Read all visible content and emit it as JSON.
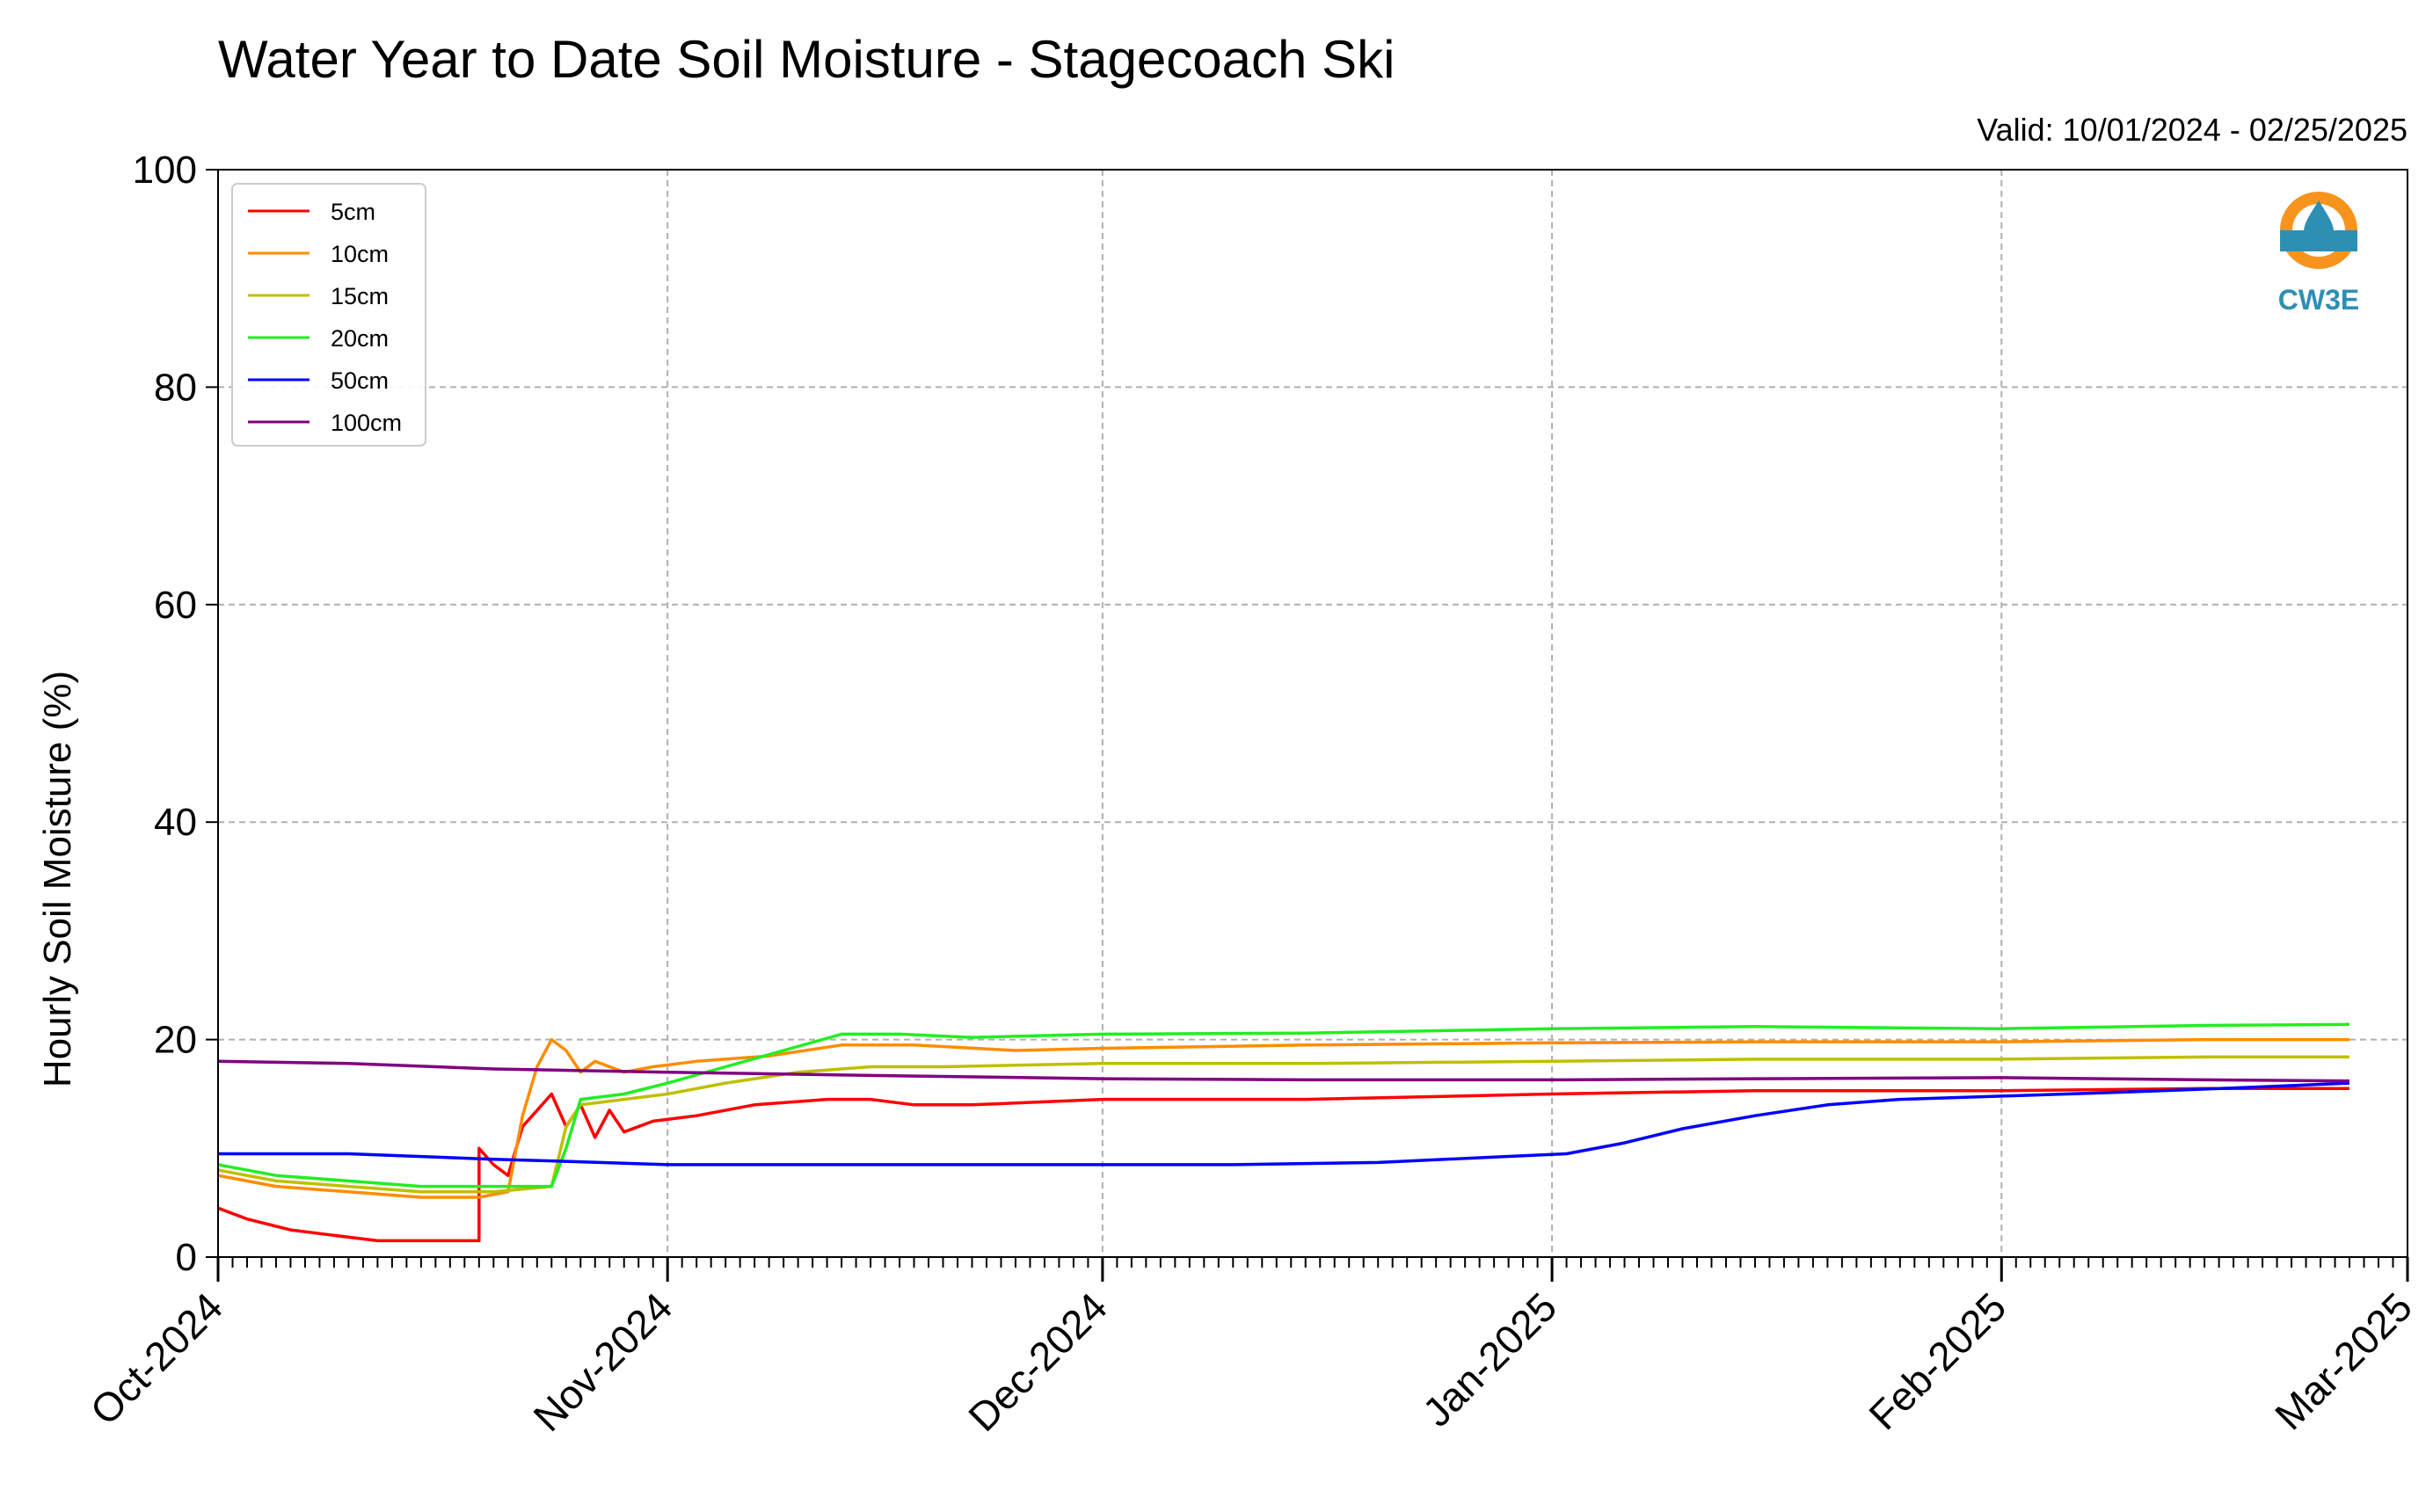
{
  "chart_data": {
    "type": "line",
    "title": "Water Year to Date Soil Moisture - Stagecoach Ski",
    "subtitle": "Valid: 10/01/2024 - 02/25/2025",
    "xlabel": "",
    "ylabel": "Hourly Soil Moisture (%)",
    "ylim": [
      0,
      100
    ],
    "xlim": [
      "2024-10-01",
      "2025-03-01"
    ],
    "yticks": [
      "0",
      "20",
      "40",
      "60",
      "80",
      "100"
    ],
    "xticks": [
      "Oct-2024",
      "Nov-2024",
      "Dec-2024",
      "Jan-2025",
      "Feb-2025",
      "Mar-2025"
    ],
    "grid": true,
    "legend_position": "top-left",
    "logo_text": "CW3E",
    "series": [
      {
        "name": "5cm",
        "color": "#ff0000",
        "points": [
          [
            "2024-10-01",
            4.5
          ],
          [
            "2024-10-03",
            3.5
          ],
          [
            "2024-10-06",
            2.5
          ],
          [
            "2024-10-09",
            2.0
          ],
          [
            "2024-10-12",
            1.5
          ],
          [
            "2024-10-15",
            1.5
          ],
          [
            "2024-10-17",
            1.5
          ],
          [
            "2024-10-19",
            1.5
          ],
          [
            "2024-10-19",
            10.0
          ],
          [
            "2024-10-20",
            8.5
          ],
          [
            "2024-10-21",
            7.5
          ],
          [
            "2024-10-22",
            12.0
          ],
          [
            "2024-10-24",
            15.0
          ],
          [
            "2024-10-25",
            12.0
          ],
          [
            "2024-10-26",
            14.0
          ],
          [
            "2024-10-27",
            11.0
          ],
          [
            "2024-10-28",
            13.5
          ],
          [
            "2024-10-29",
            11.5
          ],
          [
            "2024-10-31",
            12.5
          ],
          [
            "2024-11-03",
            13.0
          ],
          [
            "2024-11-07",
            14.0
          ],
          [
            "2024-11-12",
            14.5
          ],
          [
            "2024-11-15",
            14.5
          ],
          [
            "2024-11-18",
            14.0
          ],
          [
            "2024-11-22",
            14.0
          ],
          [
            "2024-12-01",
            14.5
          ],
          [
            "2024-12-15",
            14.5
          ],
          [
            "2025-01-01",
            15.0
          ],
          [
            "2025-01-15",
            15.3
          ],
          [
            "2025-02-01",
            15.3
          ],
          [
            "2025-02-15",
            15.5
          ],
          [
            "2025-02-25",
            15.5
          ]
        ]
      },
      {
        "name": "10cm",
        "color": "#ff8c00",
        "points": [
          [
            "2024-10-01",
            7.5
          ],
          [
            "2024-10-05",
            6.5
          ],
          [
            "2024-10-10",
            6.0
          ],
          [
            "2024-10-15",
            5.5
          ],
          [
            "2024-10-19",
            5.5
          ],
          [
            "2024-10-21",
            6.0
          ],
          [
            "2024-10-22",
            13.0
          ],
          [
            "2024-10-23",
            17.5
          ],
          [
            "2024-10-24",
            20.0
          ],
          [
            "2024-10-25",
            19.0
          ],
          [
            "2024-10-26",
            17.0
          ],
          [
            "2024-10-27",
            18.0
          ],
          [
            "2024-10-29",
            17.0
          ],
          [
            "2024-10-31",
            17.5
          ],
          [
            "2024-11-03",
            18.0
          ],
          [
            "2024-11-08",
            18.5
          ],
          [
            "2024-11-13",
            19.5
          ],
          [
            "2024-11-18",
            19.5
          ],
          [
            "2024-11-25",
            19.0
          ],
          [
            "2024-12-01",
            19.2
          ],
          [
            "2024-12-15",
            19.5
          ],
          [
            "2025-01-01",
            19.7
          ],
          [
            "2025-01-15",
            19.8
          ],
          [
            "2025-02-01",
            19.8
          ],
          [
            "2025-02-15",
            20.0
          ],
          [
            "2025-02-25",
            20.0
          ]
        ]
      },
      {
        "name": "15cm",
        "color": "#bfbf00",
        "points": [
          [
            "2024-10-01",
            8.0
          ],
          [
            "2024-10-05",
            7.0
          ],
          [
            "2024-10-10",
            6.5
          ],
          [
            "2024-10-15",
            6.0
          ],
          [
            "2024-10-20",
            6.0
          ],
          [
            "2024-10-24",
            6.5
          ],
          [
            "2024-10-25",
            12.0
          ],
          [
            "2024-10-26",
            14.0
          ],
          [
            "2024-10-29",
            14.5
          ],
          [
            "2024-11-01",
            15.0
          ],
          [
            "2024-11-05",
            16.0
          ],
          [
            "2024-11-10",
            17.0
          ],
          [
            "2024-11-15",
            17.5
          ],
          [
            "2024-11-20",
            17.5
          ],
          [
            "2024-12-01",
            17.8
          ],
          [
            "2024-12-15",
            17.8
          ],
          [
            "2025-01-01",
            18.0
          ],
          [
            "2025-01-15",
            18.2
          ],
          [
            "2025-02-01",
            18.2
          ],
          [
            "2025-02-15",
            18.4
          ],
          [
            "2025-02-25",
            18.4
          ]
        ]
      },
      {
        "name": "20cm",
        "color": "#22ee22",
        "points": [
          [
            "2024-10-01",
            8.5
          ],
          [
            "2024-10-05",
            7.5
          ],
          [
            "2024-10-10",
            7.0
          ],
          [
            "2024-10-15",
            6.5
          ],
          [
            "2024-10-20",
            6.5
          ],
          [
            "2024-10-24",
            6.5
          ],
          [
            "2024-10-25",
            10.0
          ],
          [
            "2024-10-26",
            14.5
          ],
          [
            "2024-10-29",
            15.0
          ],
          [
            "2024-11-01",
            16.0
          ],
          [
            "2024-11-05",
            17.5
          ],
          [
            "2024-11-09",
            19.0
          ],
          [
            "2024-11-13",
            20.5
          ],
          [
            "2024-11-17",
            20.5
          ],
          [
            "2024-11-22",
            20.2
          ],
          [
            "2024-12-01",
            20.5
          ],
          [
            "2024-12-15",
            20.6
          ],
          [
            "2025-01-01",
            21.0
          ],
          [
            "2025-01-15",
            21.2
          ],
          [
            "2025-02-01",
            21.0
          ],
          [
            "2025-02-15",
            21.3
          ],
          [
            "2025-02-25",
            21.4
          ]
        ]
      },
      {
        "name": "50cm",
        "color": "#0000ff",
        "points": [
          [
            "2024-10-01",
            9.5
          ],
          [
            "2024-10-10",
            9.5
          ],
          [
            "2024-10-20",
            9.0
          ],
          [
            "2024-10-25",
            8.8
          ],
          [
            "2024-11-01",
            8.5
          ],
          [
            "2024-11-15",
            8.5
          ],
          [
            "2024-12-01",
            8.5
          ],
          [
            "2024-12-10",
            8.5
          ],
          [
            "2024-12-20",
            8.7
          ],
          [
            "2024-12-28",
            9.2
          ],
          [
            "2025-01-02",
            9.5
          ],
          [
            "2025-01-06",
            10.5
          ],
          [
            "2025-01-10",
            11.8
          ],
          [
            "2025-01-15",
            13.0
          ],
          [
            "2025-01-20",
            14.0
          ],
          [
            "2025-01-25",
            14.5
          ],
          [
            "2025-02-01",
            14.8
          ],
          [
            "2025-02-10",
            15.2
          ],
          [
            "2025-02-18",
            15.6
          ],
          [
            "2025-02-25",
            16.0
          ]
        ]
      },
      {
        "name": "100cm",
        "color": "#800080",
        "points": [
          [
            "2024-10-01",
            18.0
          ],
          [
            "2024-10-10",
            17.8
          ],
          [
            "2024-10-20",
            17.3
          ],
          [
            "2024-11-01",
            17.0
          ],
          [
            "2024-11-15",
            16.7
          ],
          [
            "2024-12-01",
            16.4
          ],
          [
            "2024-12-15",
            16.3
          ],
          [
            "2025-01-01",
            16.3
          ],
          [
            "2025-01-15",
            16.4
          ],
          [
            "2025-02-01",
            16.5
          ],
          [
            "2025-02-15",
            16.3
          ],
          [
            "2025-02-25",
            16.2
          ]
        ]
      }
    ]
  }
}
